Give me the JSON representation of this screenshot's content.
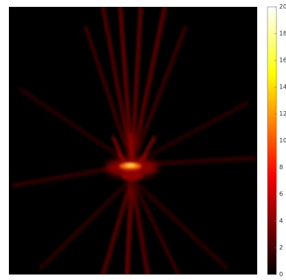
{
  "chart_data": {
    "type": "heatmap",
    "colormap": "hot",
    "clim": [
      0,
      20
    ],
    "cticks": [
      0,
      2,
      4,
      6,
      8,
      10,
      12,
      14,
      16,
      18,
      20
    ]
  }
}
